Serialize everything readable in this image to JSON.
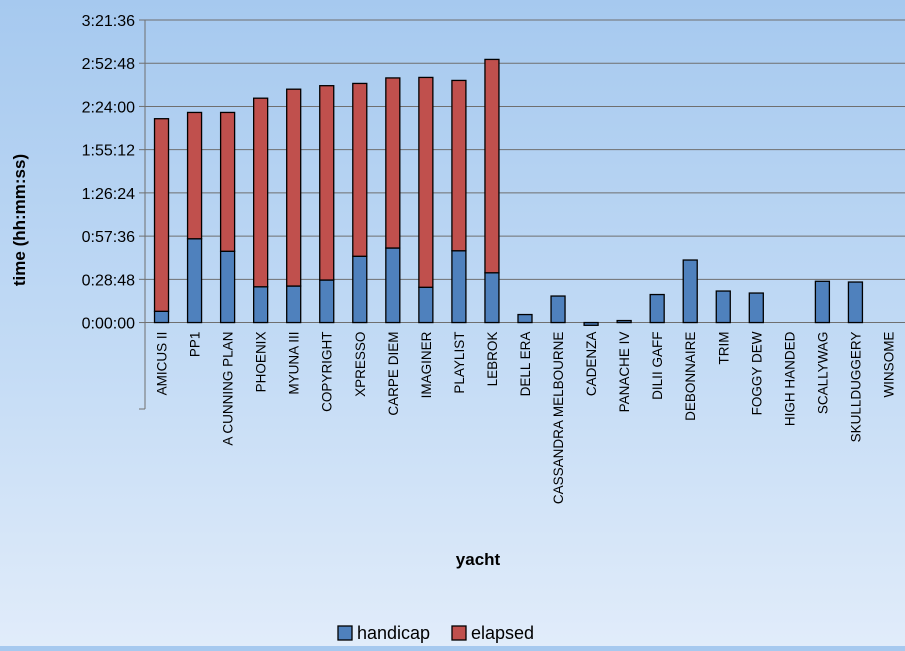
{
  "chart_data": {
    "type": "bar",
    "stacked": true,
    "title": "",
    "xlabel": "yacht",
    "ylabel": "time (hh:mm:ss)",
    "y_unit": "seconds",
    "ylim": [
      -3456,
      12096
    ],
    "y_ticks": [
      0,
      1728,
      3456,
      5184,
      6912,
      8640,
      10368,
      12096
    ],
    "y_tick_labels": [
      "0:00:00",
      "0:28:48",
      "0:57:36",
      "1:26:24",
      "1:55:12",
      "2:24:00",
      "2:52:48",
      "3:21:36"
    ],
    "grid": true,
    "legend_position": "bottom",
    "categories": [
      "AMICUS II",
      "PP1",
      "A CUNNING PLAN",
      "PHOENIX",
      "MYUNA III",
      "COPYRIGHT",
      "XPRESSO",
      "CARPE DIEM",
      "IMAGINER",
      "PLAYLIST",
      "LEBROK",
      "DELL ERA",
      "CASSANDRA MELBOURNE",
      "CADENZA",
      "PANACHE IV",
      "DILII GAFF",
      "DEBONNAIRE",
      "TRIM",
      "FOGGY DEW",
      "HIGH HANDED",
      "SCALLYWAG",
      "SKULLDUGGERY",
      "WINSOME"
    ],
    "series": [
      {
        "name": "handicap",
        "color": "#4f81bd",
        "values": [
          450,
          3350,
          2850,
          1430,
          1460,
          1700,
          2650,
          2980,
          1410,
          2870,
          1990,
          320,
          1060,
          -110,
          80,
          1120,
          2500,
          1260,
          1180,
          0,
          1650,
          1620,
          0
        ]
      },
      {
        "name": "elapsed",
        "color": "#c0504d",
        "values": [
          7700,
          5050,
          5550,
          7540,
          7870,
          7770,
          6910,
          6800,
          8390,
          6810,
          8530,
          0,
          0,
          0,
          0,
          0,
          0,
          0,
          0,
          0,
          0,
          0,
          0
        ]
      }
    ]
  }
}
